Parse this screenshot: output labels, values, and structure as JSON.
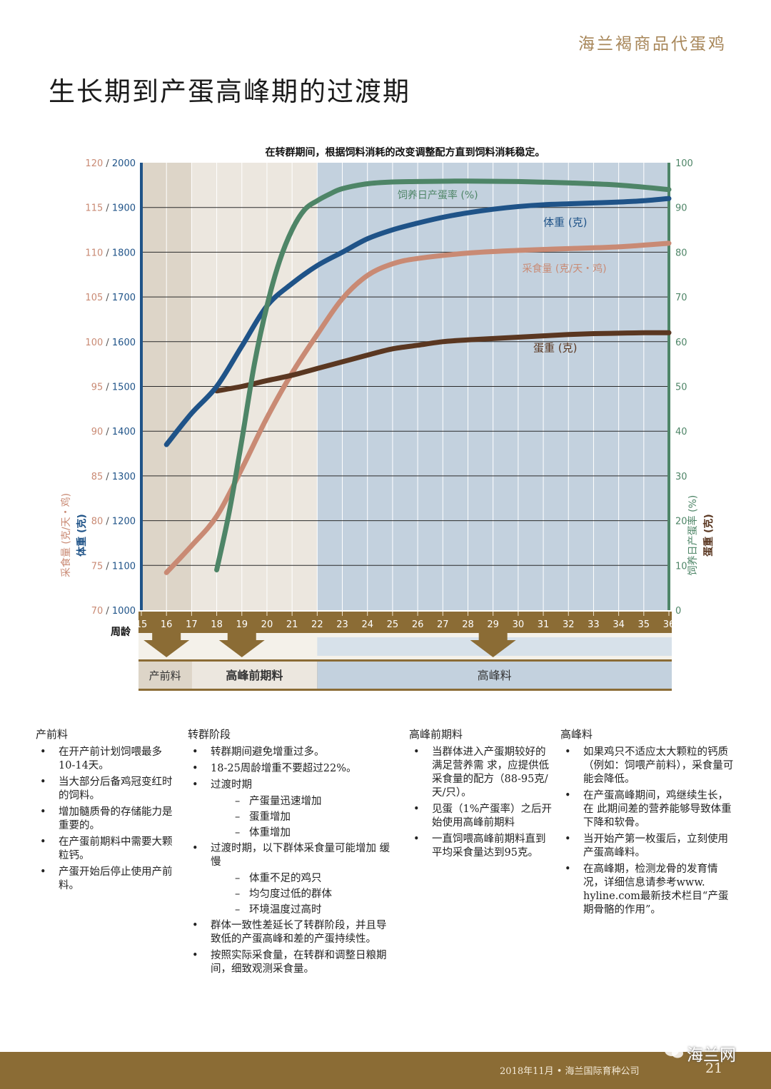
{
  "header": {
    "brand": "海兰褐商品代蛋鸡",
    "title": "生长期到产蛋高峰期的过渡期"
  },
  "chart_data": {
    "type": "line",
    "title": "在转群期间，根据饲料消耗的改变调整配方直到饲料消耗稳定。",
    "xlabel": "周龄",
    "x_ticks": [
      "15",
      "16",
      "17",
      "18",
      "19",
      "20",
      "21",
      "22",
      "23",
      "24",
      "25",
      "26",
      "27",
      "28",
      "29",
      "30",
      "31",
      "32",
      "33",
      "34",
      "35",
      "36"
    ],
    "xlim": [
      15,
      36
    ],
    "y_left": {
      "label_feed": "采食量 (克/天・鸡)",
      "label_body": "体重 (克)",
      "feed_ticks": [
        "120",
        "115",
        "110",
        "105",
        "100",
        "95",
        "90",
        "85",
        "80",
        "75",
        "70"
      ],
      "body_ticks": [
        "2000",
        "1900",
        "1800",
        "1700",
        "1600",
        "1500",
        "1400",
        "1300",
        "1200",
        "1100",
        "1000"
      ],
      "feed_range": [
        70,
        120
      ],
      "body_range": [
        1000,
        2000
      ]
    },
    "y_right": {
      "label_rate": "饲养日产蛋率 (%)",
      "label_egg": "蛋重 (克)",
      "ticks": [
        "100",
        "90",
        "80",
        "70",
        "60",
        "50",
        "40",
        "30",
        "20",
        "10",
        "0"
      ],
      "range": [
        0,
        100
      ]
    },
    "series": [
      {
        "name": "饲养日产蛋率 (%)",
        "axis": "right",
        "color": "#4e8567",
        "x": [
          18,
          18.5,
          19,
          19.5,
          20,
          20.5,
          21,
          21.5,
          22,
          22.5,
          23,
          24,
          25,
          26,
          28,
          30,
          32,
          34,
          36
        ],
        "y": [
          9,
          22,
          38,
          55,
          68,
          78,
          85,
          89.5,
          91.5,
          93,
          94.2,
          95.3,
          95.7,
          95.8,
          95.9,
          95.8,
          95.5,
          95,
          94
        ]
      },
      {
        "name": "体重 (克)",
        "axis": "left_body",
        "color": "#1f5388",
        "x": [
          16,
          17,
          18,
          19,
          20,
          21,
          22,
          23,
          24,
          25,
          26,
          27,
          28,
          29,
          30,
          31,
          32,
          33,
          34,
          35,
          36
        ],
        "y": [
          1370,
          1440,
          1500,
          1590,
          1680,
          1730,
          1770,
          1800,
          1830,
          1850,
          1865,
          1878,
          1888,
          1896,
          1902,
          1906,
          1908,
          1910,
          1912,
          1915,
          1920
        ]
      },
      {
        "name": "采食量 (克/天・鸡)",
        "axis": "left_feed",
        "color": "#c98a74",
        "x": [
          16,
          17,
          18,
          19,
          20,
          21,
          22,
          23,
          24,
          25,
          26,
          28,
          30,
          32,
          34,
          36
        ],
        "y": [
          74.2,
          77.2,
          80.5,
          85.8,
          91.5,
          96.5,
          100.8,
          104.8,
          107.4,
          108.7,
          109.3,
          109.9,
          110.2,
          110.4,
          110.6,
          111
        ],
        "label_x": 30.5,
        "label_y": 108.2
      },
      {
        "name": "蛋重 (克)",
        "axis": "right",
        "color": "#5a3721",
        "x": [
          18,
          19,
          20,
          21,
          22,
          23,
          24,
          25,
          26,
          27,
          28,
          29,
          30,
          31,
          32,
          33,
          34,
          35,
          36
        ],
        "y": [
          49,
          50,
          51.3,
          52.5,
          54,
          55.5,
          57,
          58.4,
          59.2,
          60,
          60.4,
          60.7,
          61,
          61.3,
          61.6,
          61.8,
          61.9,
          62,
          62
        ]
      }
    ],
    "phases": [
      {
        "label": "产前料",
        "from": 15,
        "to": 17,
        "color": "#ddd5c8"
      },
      {
        "label": "高峰前期料",
        "from": 17,
        "to": 22,
        "color": "#ece7df"
      },
      {
        "label": "高峰料",
        "from": 22,
        "to": 36,
        "color": "#c3d1de"
      }
    ],
    "arrows_at": [
      16,
      19,
      29
    ]
  },
  "notes": [
    {
      "heading": "产前料",
      "items": [
        {
          "text": "在开产前计划饲喂最多10-14天。"
        },
        {
          "text": "当大部分后备鸡冠变红时的饲料。"
        },
        {
          "text": "增加髓质骨的存储能力是重要的。"
        },
        {
          "text": "在产蛋前期料中需要大颗粒钙。"
        },
        {
          "text": "产蛋开始后停止使用产前料。"
        }
      ]
    },
    {
      "heading": "转群阶段",
      "items": [
        {
          "text": "转群期间避免增重过多。"
        },
        {
          "text": "18-25周龄增重不要超过22%。"
        },
        {
          "text": "过渡时期"
        },
        {
          "text": "产蛋量迅速增加",
          "sub": true
        },
        {
          "text": "蛋重增加",
          "sub": true
        },
        {
          "text": "体重增加",
          "sub": true
        },
        {
          "text": "过渡时期，以下群体采食量可能增加 缓慢"
        },
        {
          "text": "体重不足的鸡只",
          "sub": true
        },
        {
          "text": "均匀度过低的群体",
          "sub": true
        },
        {
          "text": "环境温度过高时",
          "sub": true
        },
        {
          "text": "群体一致性差延长了转群阶段，并且导 致低的产蛋高峰和差的产蛋持续性。"
        },
        {
          "text": "按照实际采食量，在转群和调整日粮期 间，细致观测采食量。"
        }
      ]
    },
    {
      "heading": "高峰前期料",
      "items": [
        {
          "text": "当群体进入产蛋期较好的满足营养需 求，应提供低采食量的配方（88-95克/天/只）。"
        },
        {
          "text": "见蛋（1%产蛋率）之后开始使用高峰前期料"
        },
        {
          "text": "一直饲喂高峰前期料直到平均采食量达到95克。"
        }
      ]
    },
    {
      "heading": "高峰料",
      "items": [
        {
          "text": "如果鸡只不适应太大颗粒的钙质（例如：饲喂产前料），采食量可能会降低。"
        },
        {
          "text": "在产蛋高峰期间，鸡继续生长，在 此期间差的营养能够导致体重下降和软骨。"
        },
        {
          "text": "当开始产第一枚蛋后，立刻使用产蛋高峰料。"
        },
        {
          "text": "在高峰期，检测龙骨的发育情况，详细信息请参考www. hyline.com最新技术栏目“产蛋期骨骼的作用”。"
        }
      ]
    }
  ],
  "footer": {
    "text": "2018年11月  •  海兰国际育种公司",
    "page": "21",
    "watermark": "海兰网"
  }
}
